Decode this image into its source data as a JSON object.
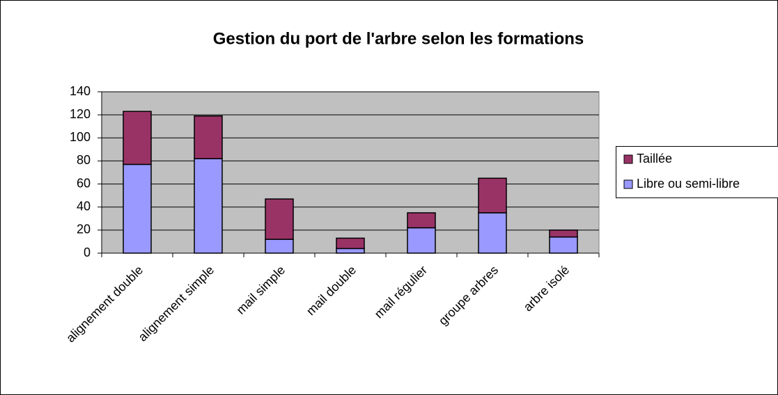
{
  "chart_data": {
    "type": "stacked_bar",
    "title": "Gestion du port de l'arbre selon les formations",
    "categories": [
      "alignement double",
      "alignement simple",
      "mail simple",
      "mail double",
      "mail régulier",
      "groupe arbres",
      "arbre isolé"
    ],
    "series": [
      {
        "name": "Libre ou semi-libre",
        "color": "#9999ff",
        "values": [
          77,
          82,
          12,
          4,
          22,
          35,
          14
        ]
      },
      {
        "name": "Taillée",
        "color": "#993366",
        "values": [
          46,
          37,
          35,
          9,
          13,
          30,
          6
        ]
      }
    ],
    "ylim": [
      0,
      140
    ],
    "yticks": [
      0,
      20,
      40,
      60,
      80,
      100,
      120,
      140
    ],
    "grid": true,
    "legend": "right"
  }
}
